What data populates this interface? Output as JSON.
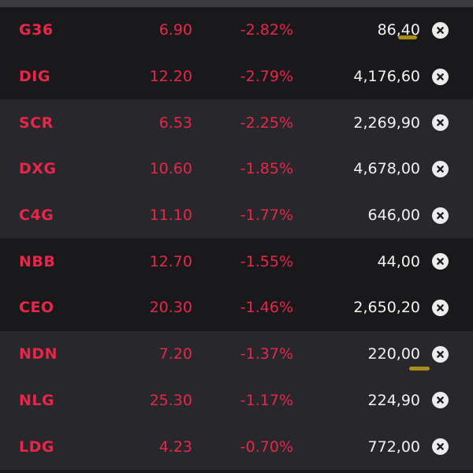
{
  "watchlist": {
    "rows": [
      {
        "symbol": "G36",
        "price": "6.90",
        "change": "-2.82%",
        "volume": "86,40"
      },
      {
        "symbol": "DIG",
        "price": "12.20",
        "change": "-2.79%",
        "volume": "4,176,60"
      },
      {
        "symbol": "SCR",
        "price": "6.53",
        "change": "-2.25%",
        "volume": "2,269,90"
      },
      {
        "symbol": "DXG",
        "price": "10.60",
        "change": "-1.85%",
        "volume": "4,678,00"
      },
      {
        "symbol": "C4G",
        "price": "11.10",
        "change": "-1.77%",
        "volume": "646,00"
      },
      {
        "symbol": "NBB",
        "price": "12.70",
        "change": "-1.55%",
        "volume": "44,00"
      },
      {
        "symbol": "CEO",
        "price": "20.30",
        "change": "-1.46%",
        "volume": "2,650,20"
      },
      {
        "symbol": "NDN",
        "price": "7.20",
        "change": "-1.37%",
        "volume": "220,00"
      },
      {
        "symbol": "NLG",
        "price": "25.30",
        "change": "-1.17%",
        "volume": "224,90"
      },
      {
        "symbol": "LDG",
        "price": "4.23",
        "change": "-0.70%",
        "volume": "772,00"
      }
    ],
    "remove_icon": "close-circle-icon"
  },
  "colors": {
    "decline": "#e8264a",
    "volume_text": "#f2f2f2",
    "row_dark": "#19191b",
    "row_light": "#28272c"
  }
}
